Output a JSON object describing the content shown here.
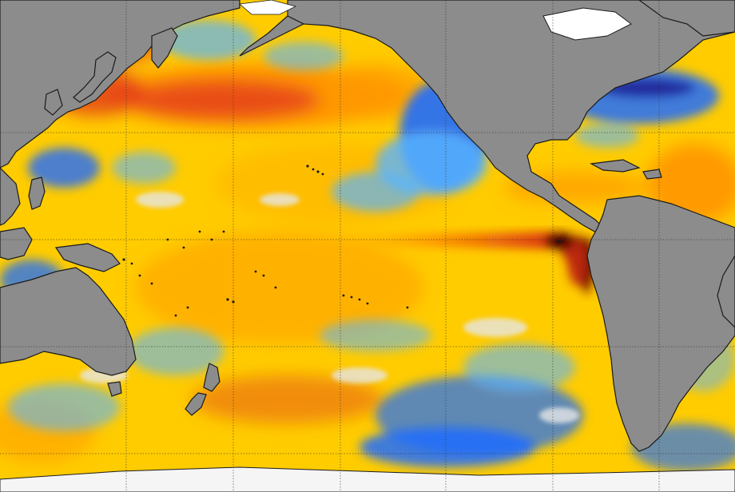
{
  "map": {
    "palette": {
      "land": "#8c8c8c",
      "coastline": "#1a1a1a",
      "ice": "#ffffff",
      "anomaly_strong_warm": "#5a0a00",
      "anomaly_warm": "#e0301e",
      "anomaly_mild_warm": "#ff9a00",
      "anomaly_slight_warm": "#ffd400",
      "anomaly_neutral": "#e6e6e6",
      "anomaly_slight_cool": "#5ab4ff",
      "anomaly_cool": "#1e6cff",
      "anomaly_strong_cool": "#1a1a8c"
    },
    "grid": {
      "style": "dotted",
      "meridian_count": 6,
      "parallel_count": 4
    }
  }
}
